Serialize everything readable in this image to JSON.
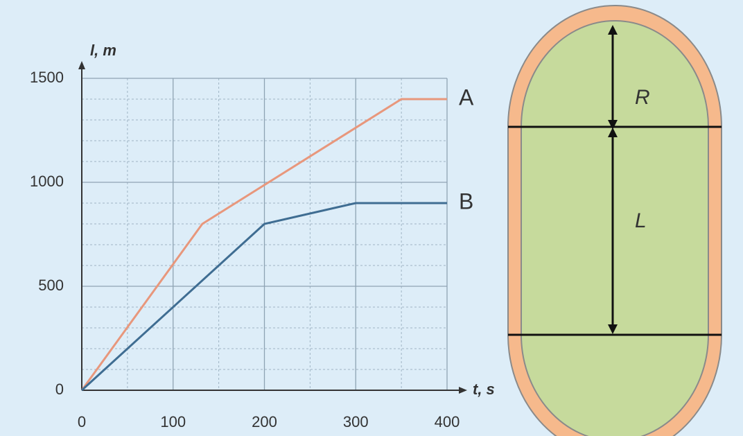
{
  "chart_data": {
    "type": "line",
    "x_label": "t, s",
    "y_label": "l, m",
    "xlim": [
      0,
      400
    ],
    "ylim": [
      0,
      1500
    ],
    "xticks": [
      0,
      100,
      200,
      300,
      400
    ],
    "yticks": [
      0,
      500,
      1000,
      1500
    ],
    "minor_xticks": [
      50,
      150,
      250,
      350
    ],
    "minor_yticks": [
      100,
      200,
      300,
      400,
      600,
      700,
      800,
      900,
      1100,
      1200,
      1300,
      1400
    ],
    "grid": true,
    "series": [
      {
        "name": "A",
        "color": "#e8977c",
        "x": [
          0,
          132,
          350,
          400
        ],
        "values": [
          0,
          800,
          1400,
          1400
        ]
      },
      {
        "name": "B",
        "color": "#3f6d92",
        "x": [
          0,
          200,
          240,
          300,
          400
        ],
        "values": [
          0,
          800,
          840,
          900,
          900
        ]
      }
    ]
  },
  "diagram": {
    "radius_label": "R",
    "length_label": "L"
  }
}
